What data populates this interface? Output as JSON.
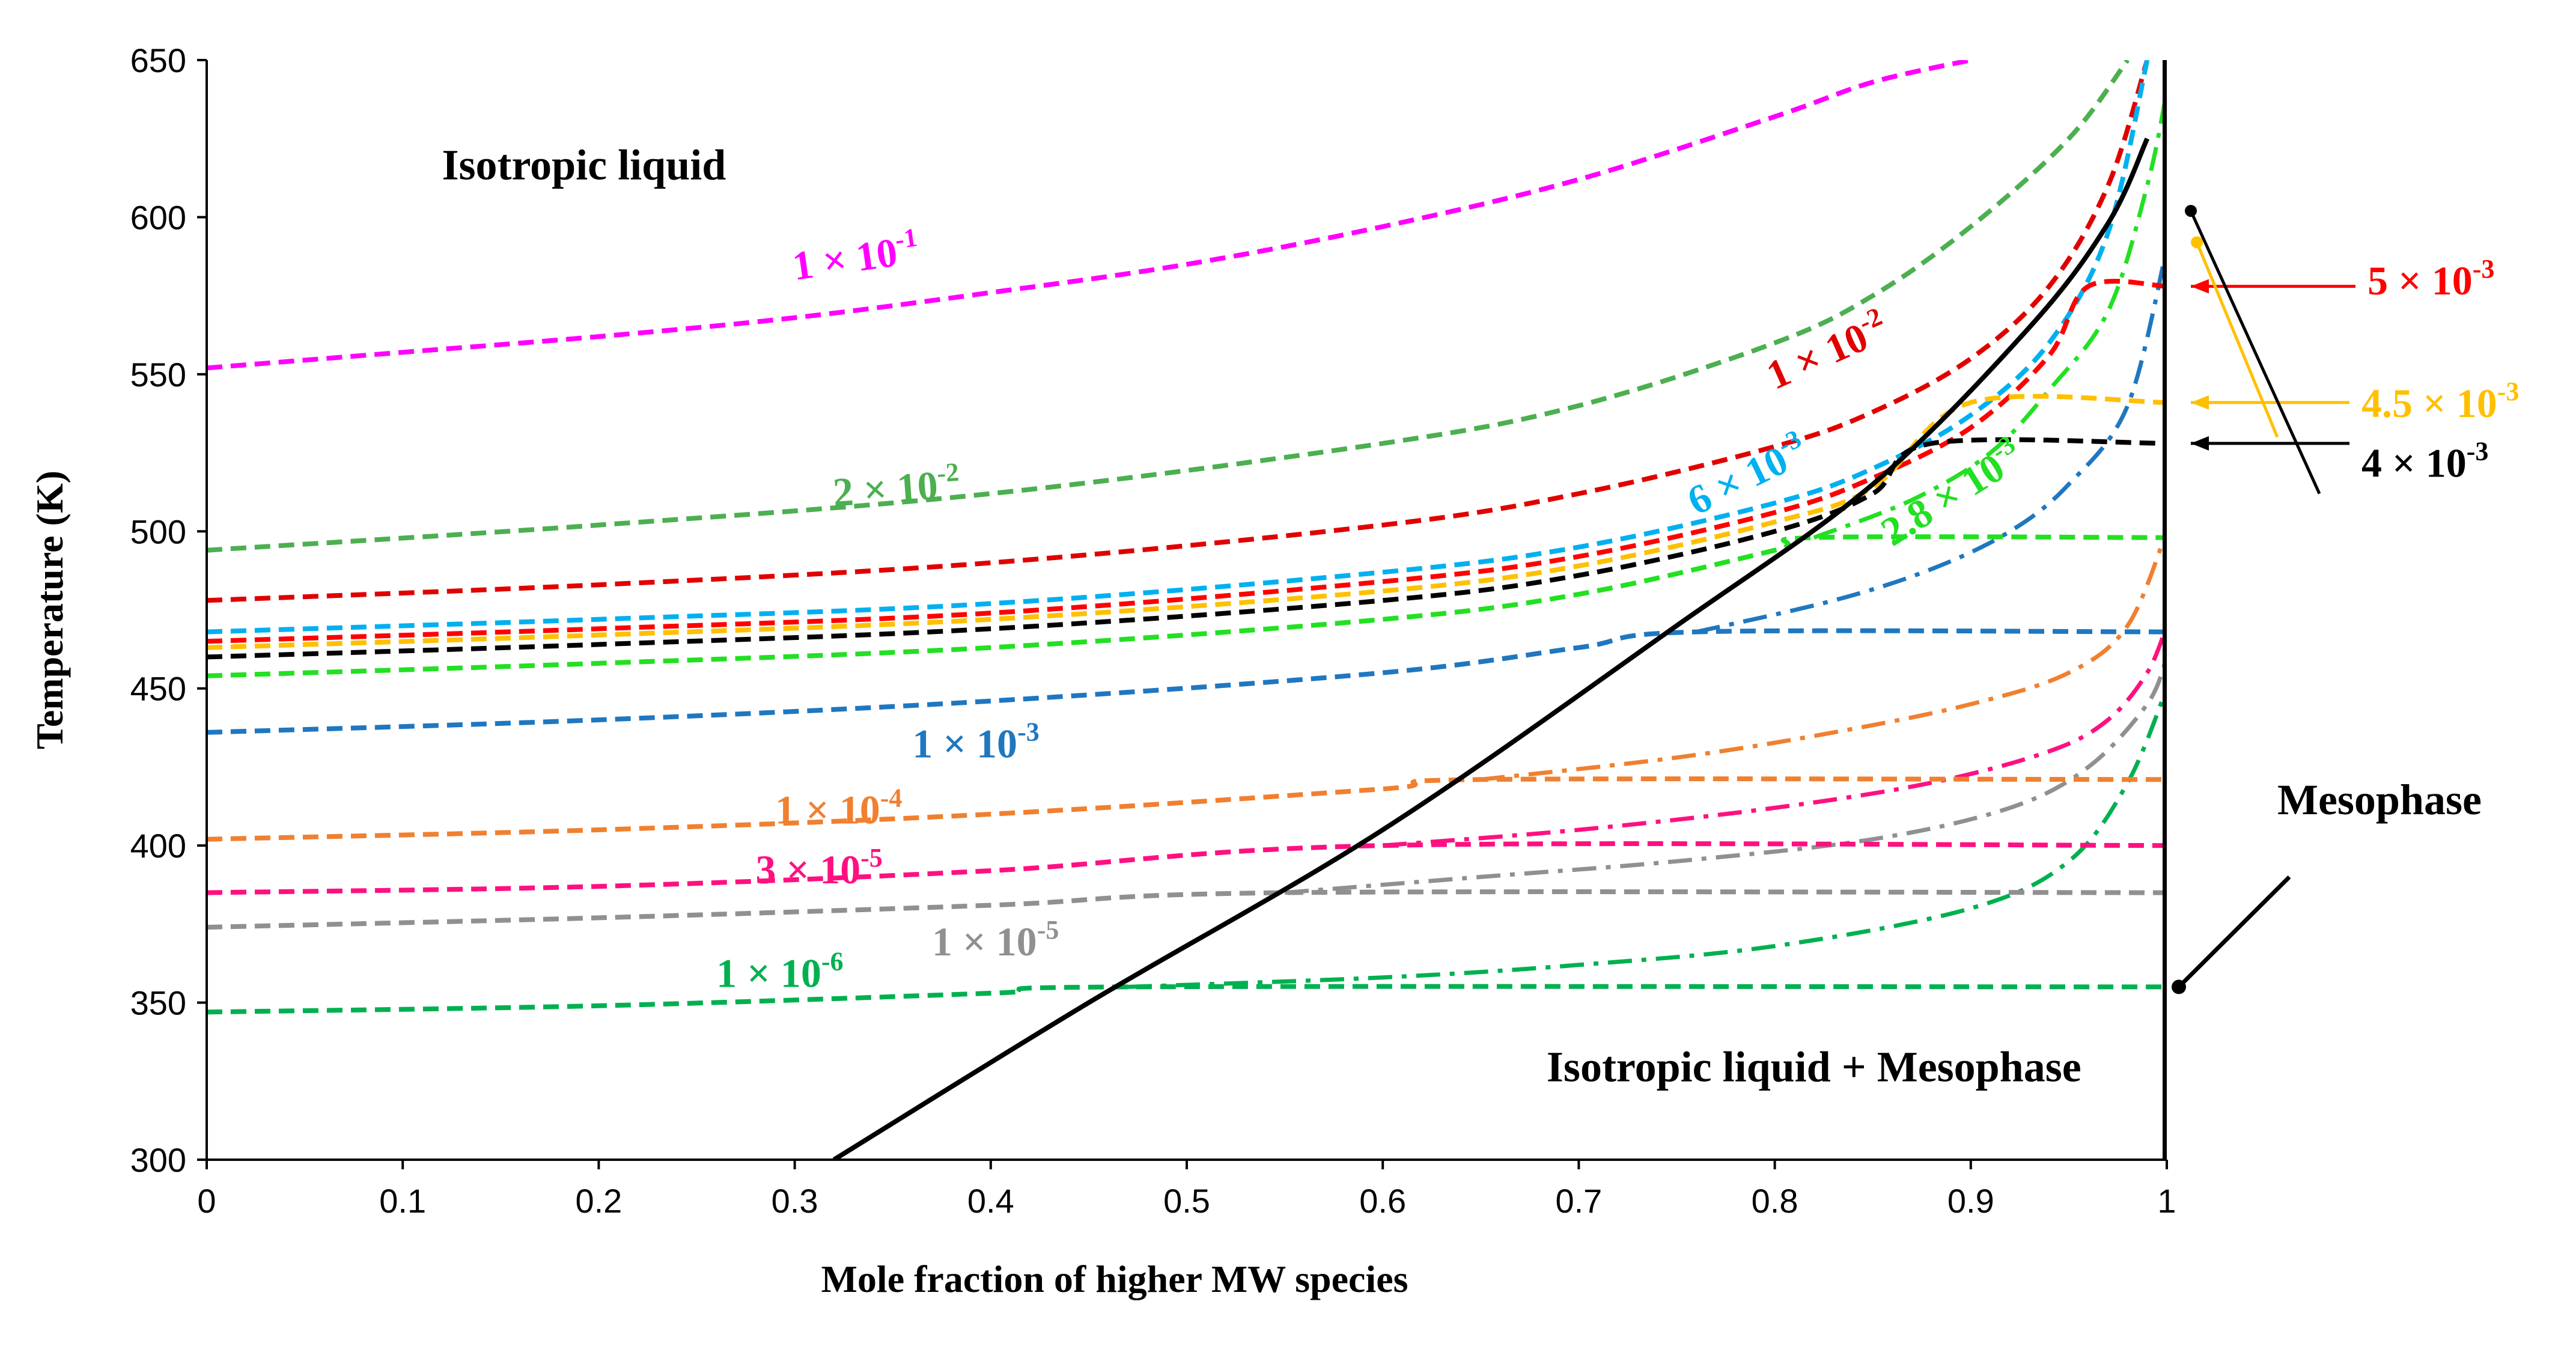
{
  "chart_data": {
    "type": "line",
    "title": "",
    "xlabel": "Mole fraction of higher MW species",
    "ylabel": "Temperature (K)",
    "xlim": [
      0,
      1
    ],
    "ylim": [
      300,
      650
    ],
    "xticks": [
      "0",
      "0.1",
      "0.2",
      "0.3",
      "0.4",
      "0.5",
      "0.6",
      "0.7",
      "0.8",
      "0.9",
      "1"
    ],
    "yticks": [
      "300",
      "350",
      "400",
      "450",
      "500",
      "550",
      "600",
      "650"
    ],
    "grid": false,
    "regions": {
      "isotropic": "Isotropic liquid",
      "two_phase": "Isotropic liquid + Mesophase",
      "mesophase": "Mesophase"
    },
    "phase_boundary": {
      "name": "phase boundary",
      "color": "#000000",
      "x": [
        0.32,
        0.45,
        0.6,
        0.75,
        0.85,
        0.93,
        0.97,
        0.99
      ],
      "y": [
        300,
        350,
        405,
        470,
        515,
        565,
        598,
        625
      ]
    },
    "series": [
      {
        "name": "1 × 10^-1",
        "base": "1 × 10",
        "exp": "-1",
        "color": "#ff00ff",
        "x": [
          0,
          0.1,
          0.2,
          0.3,
          0.4,
          0.5,
          0.6,
          0.7,
          0.8,
          0.85,
          0.9
        ],
        "y": [
          552,
          557,
          562,
          568,
          576,
          585,
          597,
          612,
          632,
          643,
          650
        ]
      },
      {
        "name": "2 × 10^-2",
        "base": "2 × 10",
        "exp": "-2",
        "color": "#4caf50",
        "x": [
          0,
          0.2,
          0.4,
          0.6,
          0.7,
          0.8,
          0.85,
          0.9,
          0.95,
          0.98
        ],
        "y": [
          494,
          502,
          512,
          528,
          540,
          560,
          575,
          597,
          625,
          650
        ]
      },
      {
        "name": "1 × 10^-2",
        "base": "1 × 10",
        "exp": "-2",
        "color": "#e00000",
        "x": [
          0,
          0.2,
          0.4,
          0.6,
          0.7,
          0.8,
          0.85,
          0.9,
          0.94,
          0.97,
          0.99
        ],
        "y": [
          478,
          483,
          490,
          502,
          512,
          527,
          538,
          555,
          578,
          610,
          650
        ]
      },
      {
        "name": "6 × 10^-3",
        "base": "6 × 10",
        "exp": "-3",
        "color": "#00b0f0",
        "x": [
          0,
          0.2,
          0.4,
          0.6,
          0.7,
          0.8,
          0.85,
          0.9,
          0.94,
          0.97,
          0.99
        ],
        "y": [
          468,
          472,
          477,
          487,
          495,
          509,
          520,
          537,
          560,
          595,
          650
        ]
      },
      {
        "name": "5 × 10^-3",
        "base": "5 × 10",
        "exp": "-3",
        "color": "#ff0000",
        "x": [
          0,
          0.2,
          0.4,
          0.6,
          0.7,
          0.8,
          0.85,
          0.9,
          0.94,
          0.96,
          1.0
        ],
        "y": [
          465,
          469,
          474,
          484,
          492,
          506,
          517,
          533,
          556,
          578,
          578
        ]
      },
      {
        "name": "4.5 × 10^-3",
        "base": "4.5 × 10",
        "exp": "-3",
        "color": "#ffc000",
        "x": [
          0,
          0.2,
          0.4,
          0.6,
          0.7,
          0.8,
          0.85,
          0.9,
          1.0
        ],
        "y": [
          463,
          467,
          472,
          481,
          489,
          503,
          514,
          541,
          541
        ]
      },
      {
        "name": "4 × 10^-3",
        "base": "4 × 10",
        "exp": "-3",
        "color": "#000000",
        "x": [
          0,
          0.2,
          0.4,
          0.6,
          0.7,
          0.8,
          0.85,
          0.88,
          1.0
        ],
        "y": [
          460,
          464,
          469,
          478,
          486,
          500,
          512,
          528,
          528
        ]
      },
      {
        "name": "2.8 × 10^-3",
        "base": "2.8 × 10",
        "exp": "-3",
        "color": "#22e022",
        "x": [
          0,
          0.2,
          0.4,
          0.6,
          0.7,
          0.8,
          0.82,
          1.0
        ],
        "y": [
          454,
          458,
          463,
          472,
          480,
          494,
          498,
          498
        ]
      },
      {
        "name": "1 × 10^-3",
        "base": "1 × 10",
        "exp": "-3",
        "color": "#1f77c0",
        "x": [
          0,
          0.2,
          0.4,
          0.6,
          0.7,
          0.76,
          1.0
        ],
        "y": [
          436,
          440,
          446,
          455,
          463,
          468,
          468
        ]
      },
      {
        "name": "1 × 10^-4",
        "base": "1 × 10",
        "exp": "-4",
        "color": "#f08030",
        "x": [
          0,
          0.2,
          0.4,
          0.6,
          0.65,
          1.0
        ],
        "y": [
          402,
          405,
          410,
          418,
          421,
          421
        ]
      },
      {
        "name": "3 × 10^-5",
        "base": "3 × 10",
        "exp": "-5",
        "color": "#ff1080",
        "x": [
          0,
          0.2,
          0.4,
          0.6,
          1.0
        ],
        "y": [
          385,
          387,
          392,
          400,
          400
        ]
      },
      {
        "name": "1 × 10^-5",
        "base": "1 × 10",
        "exp": "-5",
        "color": "#909090",
        "x": [
          0,
          0.2,
          0.4,
          0.55,
          1.0
        ],
        "y": [
          374,
          377,
          381,
          385,
          385
        ]
      },
      {
        "name": "1 × 10^-6",
        "base": "1 × 10",
        "exp": "-6",
        "color": "#00b050",
        "x": [
          0,
          0.2,
          0.4,
          0.47,
          1.0
        ],
        "y": [
          347,
          349,
          353,
          355,
          355
        ]
      }
    ],
    "dashdot_series": [
      {
        "name": "1 × 10^-6 mesophase branch",
        "color": "#00b050",
        "x": [
          0.47,
          0.6,
          0.7,
          0.8,
          0.9,
          0.95,
          0.98,
          1.0
        ],
        "y": [
          355,
          358,
          362,
          368,
          380,
          395,
          420,
          450
        ]
      },
      {
        "name": "1 × 10^-5 mesophase branch",
        "color": "#909090",
        "x": [
          0.55,
          0.65,
          0.75,
          0.85,
          0.92,
          0.96,
          0.99,
          1.0
        ],
        "y": [
          385,
          390,
          395,
          402,
          412,
          425,
          445,
          460
        ]
      },
      {
        "name": "3 × 10^-5 mesophase branch",
        "color": "#ff1080",
        "x": [
          0.6,
          0.7,
          0.8,
          0.88,
          0.94,
          0.97,
          0.99,
          1.0
        ],
        "y": [
          400,
          405,
          412,
          420,
          430,
          440,
          455,
          470
        ]
      },
      {
        "name": "1 × 10^-4 mesophase branch",
        "color": "#f08030",
        "x": [
          0.65,
          0.75,
          0.83,
          0.9,
          0.95,
          0.98,
          1.0
        ],
        "y": [
          421,
          428,
          436,
          445,
          455,
          470,
          500
        ]
      },
      {
        "name": "1 × 10^-3 mesophase branch",
        "color": "#1f77c0",
        "x": [
          0.76,
          0.83,
          0.88,
          0.92,
          0.95,
          0.98,
          1.0
        ],
        "y": [
          468,
          478,
          488,
          500,
          515,
          540,
          590
        ]
      },
      {
        "name": "2.8 × 10^-3 mesophase branch",
        "color": "#22e022",
        "x": [
          0.82,
          0.87,
          0.91,
          0.94,
          0.97,
          0.99,
          1.0
        ],
        "y": [
          498,
          510,
          525,
          545,
          570,
          610,
          640
        ]
      }
    ],
    "annotations": [
      {
        "label": "5 × 10^-3",
        "base": "5 × 10",
        "exp": "-3",
        "color": "#ff0000"
      },
      {
        "label": "4.5 × 10^-3",
        "base": "4.5 × 10",
        "exp": "-3",
        "color": "#ffc000"
      },
      {
        "label": "4 × 10^-3",
        "base": "4 × 10",
        "exp": "-3",
        "color": "#000000"
      }
    ]
  }
}
